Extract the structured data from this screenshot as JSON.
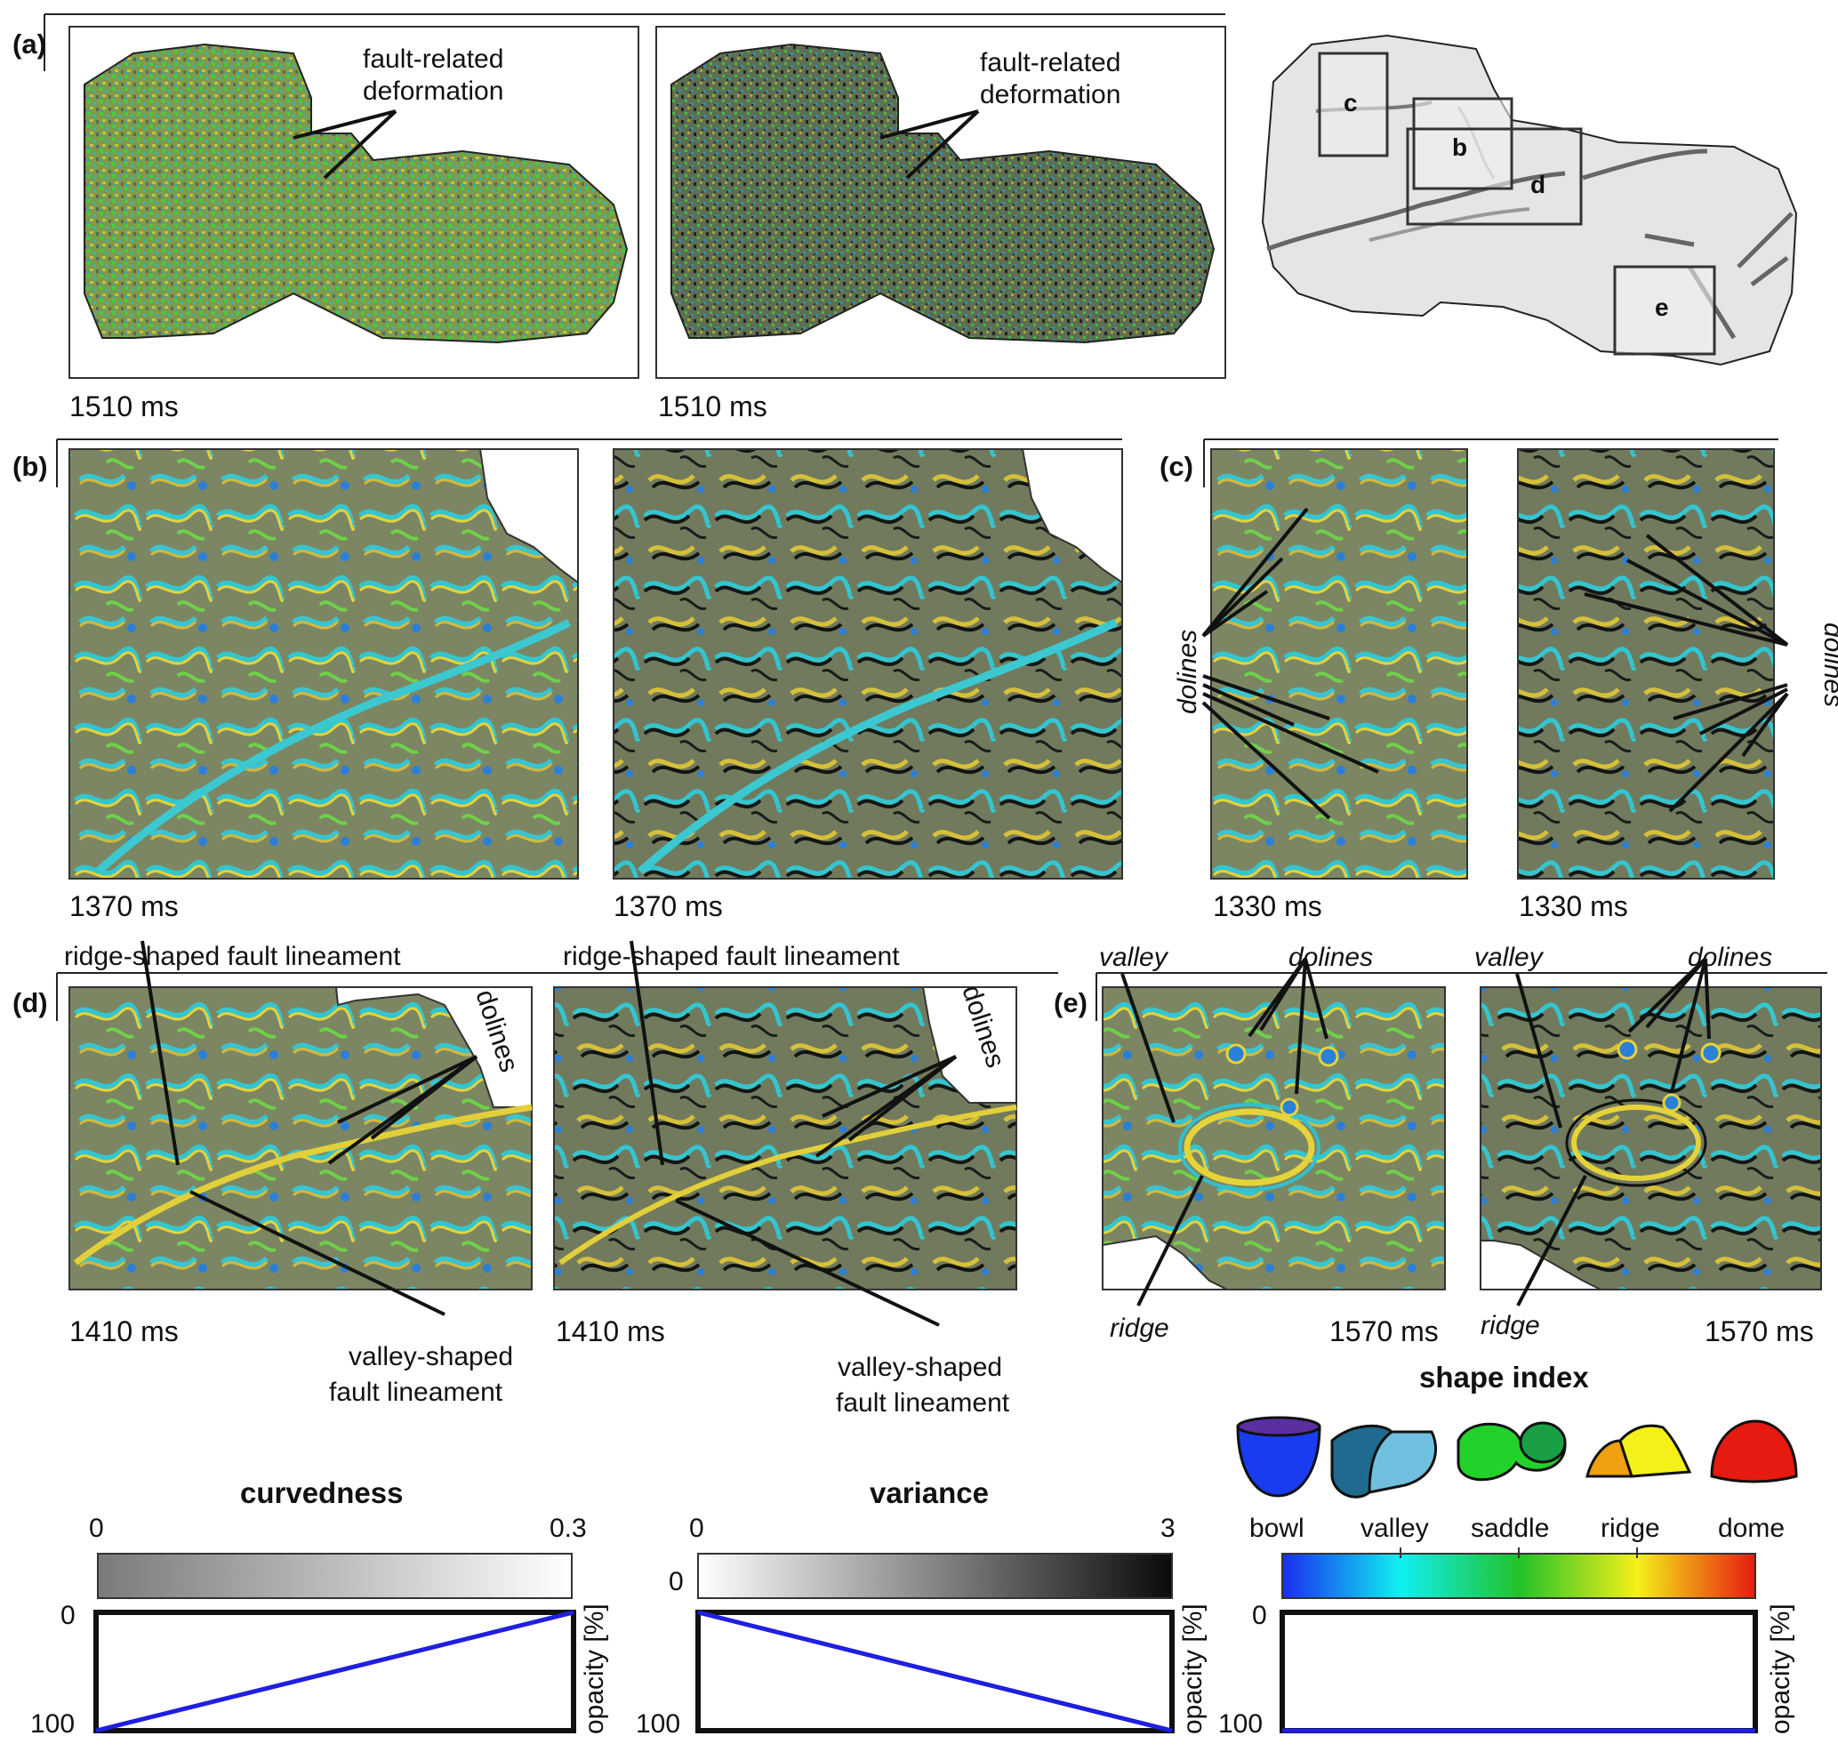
{
  "figure": {
    "panel_a": {
      "tag": "(a)",
      "time_left": "1510 ms",
      "time_right": "1510 ms",
      "annotation_line1": "fault-related",
      "annotation_line2": "deformation",
      "map_labels": [
        "c",
        "b",
        "d",
        "e"
      ]
    },
    "panel_b": {
      "tag": "(b)",
      "time_left": "1370 ms",
      "time_right": "1370 ms"
    },
    "panel_c": {
      "tag": "(c)",
      "time_left": "1330 ms",
      "time_right": "1330 ms",
      "annotation": "dolines"
    },
    "panel_d": {
      "tag": "(d)",
      "time_left": "1410 ms",
      "time_right": "1410 ms",
      "ridge_label": "ridge-shaped fault lineament",
      "valley_label_line1": "valley-shaped",
      "valley_label_line2": "fault lineament",
      "dolines_label": "dolines"
    },
    "panel_e": {
      "tag": "(e)",
      "time_left": "1570 ms",
      "time_right": "1570 ms",
      "valley": "valley",
      "dolines": "dolines",
      "ridge": "ridge"
    },
    "colorbars": {
      "curvedness": {
        "title": "curvedness",
        "min": "0",
        "max": "0.3",
        "opacity_top": "0",
        "opacity_bottom": "100",
        "axis": "opacity [%]"
      },
      "variance": {
        "title": "variance",
        "min": "0",
        "max": "3",
        "opacity_top": "0",
        "opacity_bottom": "100",
        "axis": "opacity [%]"
      },
      "shape_index": {
        "title": "shape index",
        "classes": [
          "bowl",
          "valley",
          "saddle",
          "ridge",
          "dome"
        ],
        "opacity_top": "0",
        "opacity_bottom": "100",
        "axis": "opacity [%]"
      }
    },
    "colors": {
      "bowl": "#1a3cf0",
      "valley": "#2f9ec9",
      "saddle": "#22c22a",
      "ridge": "#f5e51a",
      "dome": "#e61a10",
      "opacity_line": "#1f1fe0",
      "seismic_base": "#6f7f5a"
    }
  }
}
